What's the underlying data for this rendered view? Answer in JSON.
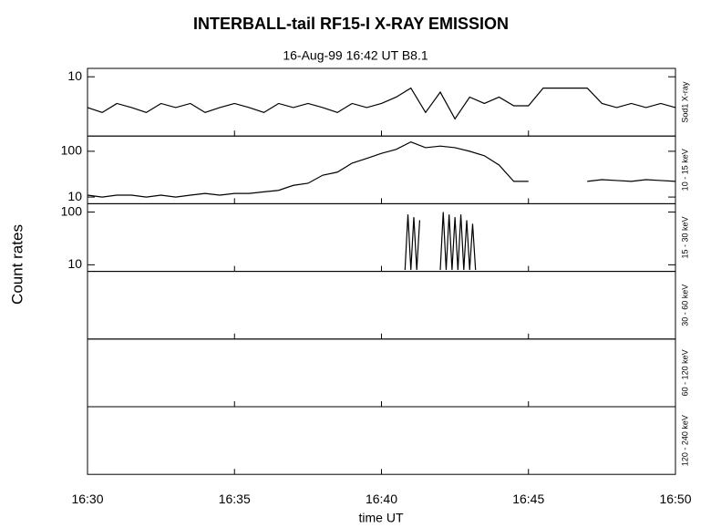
{
  "title": "INTERBALL-tail  RF15-I   X-RAY  EMISSION",
  "subtitle": "16-Aug-99    16:42 UT     B8.1",
  "ylabel": "Count  rates",
  "xlabel": "time UT",
  "xlim": [
    990,
    1010
  ],
  "xticks": [
    {
      "value": 990,
      "label": "16:30"
    },
    {
      "value": 995,
      "label": "16:35"
    },
    {
      "value": 1000,
      "label": "16:40"
    },
    {
      "value": 1005,
      "label": "16:45"
    },
    {
      "value": 1010,
      "label": "16:50"
    }
  ],
  "chart_data": [
    {
      "type": "line",
      "label": "Sod1 X-ray",
      "log": true,
      "color": "#000000",
      "ylim": [
        0.69,
        14.6
      ],
      "yticks": [
        10
      ],
      "x": [
        990,
        990.5,
        991,
        991.5,
        992,
        992.5,
        993,
        993.5,
        994,
        994.5,
        995,
        995.5,
        996,
        996.5,
        997,
        997.5,
        998,
        998.5,
        999,
        999.5,
        1000,
        1000.5,
        1001,
        1001.5,
        1002,
        1002.5,
        1003,
        1003.5,
        1004,
        1004.5,
        1005,
        1005.5,
        1006,
        1006.5,
        1007,
        1007.5,
        1008,
        1008.5,
        1009,
        1009.5,
        1010
      ],
      "values": [
        2.5,
        2,
        3,
        2.5,
        2,
        3,
        2.5,
        3,
        2,
        2.5,
        3,
        2.5,
        2,
        3,
        2.5,
        3,
        2.5,
        2,
        3,
        2.5,
        3,
        4,
        6,
        2,
        5,
        1.5,
        4,
        3,
        4,
        2.7,
        2.7,
        6,
        6,
        6,
        6,
        3,
        2.5,
        3,
        2.5,
        3,
        2.5
      ]
    },
    {
      "type": "line",
      "label": "10 - 15 keV",
      "log": true,
      "color": "#000000",
      "ylim": [
        7.15,
        215
      ],
      "yticks": [
        10,
        100
      ],
      "x": [
        990,
        990.5,
        991,
        991.5,
        992,
        992.5,
        993,
        993.5,
        994,
        994.5,
        995,
        995.5,
        996,
        996.5,
        997,
        997.5,
        998,
        998.5,
        999,
        999.5,
        1000,
        1000.5,
        1001,
        1001.5,
        1002,
        1002.5,
        1003,
        1003.5,
        1004,
        1004.5,
        1005,
        1005.5,
        1006,
        1006.5,
        1007,
        1007.5,
        1008,
        1008.5,
        1009,
        1009.5,
        1010
      ],
      "values": [
        11,
        10,
        11,
        11,
        10,
        11,
        10,
        11,
        12,
        11,
        12,
        12,
        13,
        14,
        18,
        20,
        30,
        35,
        55,
        70,
        90,
        110,
        160,
        120,
        130,
        120,
        100,
        80,
        50,
        22,
        22,
        null,
        null,
        null,
        22,
        24,
        23,
        22,
        24,
        23,
        22
      ]
    },
    {
      "type": "line",
      "label": "15 - 30 keV",
      "log": true,
      "color": "#000000",
      "ylim": [
        7.5,
        144
      ],
      "yticks": [
        10,
        100
      ],
      "x": [
        1000.8,
        1000.9,
        1001,
        1001.1,
        1001.2,
        1001.3,
        1001.6,
        1002,
        1002.1,
        1002.2,
        1002.3,
        1002.4,
        1002.5,
        1002.6,
        1002.7,
        1002.8,
        1002.9,
        1003,
        1003.1,
        1003.2
      ],
      "values": [
        8,
        90,
        8,
        80,
        8,
        70,
        null,
        8,
        100,
        8,
        90,
        8,
        80,
        8,
        90,
        8,
        70,
        8,
        60,
        8
      ]
    },
    {
      "type": "line",
      "label": "30 - 60 keV"
    },
    {
      "type": "line",
      "label": "60 - 120 keV"
    },
    {
      "type": "line",
      "label": "120 - 240 keV"
    }
  ]
}
